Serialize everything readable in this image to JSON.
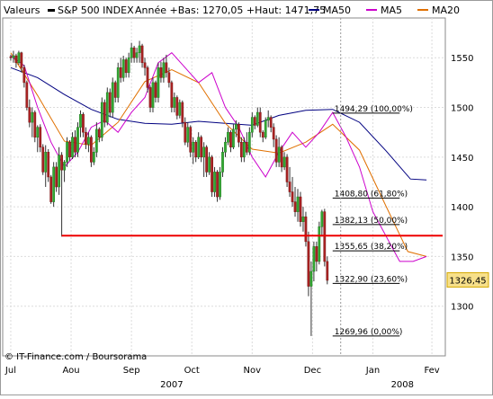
{
  "chart_data": {
    "type": "candlestick",
    "header": {
      "left_label": "Valeurs",
      "symbol": "S&P 500 INDEX",
      "range_text": "Année +Bas: 1270,05 +Haut: 1471,75"
    },
    "legend": [
      {
        "name": "MA50",
        "color": "#000080"
      },
      {
        "name": "MA5",
        "color": "#cc00cc"
      },
      {
        "name": "MA20",
        "color": "#e07000"
      }
    ],
    "y_ticks": [
      1300,
      1350,
      1400,
      1450,
      1500,
      1550
    ],
    "ylim": [
      1250,
      1590
    ],
    "x_month_labels": [
      {
        "label": "Jul",
        "x": 0
      },
      {
        "label": "Aou",
        "x": 22.5
      },
      {
        "label": "Sep",
        "x": 45
      },
      {
        "label": "Oct",
        "x": 67.5
      },
      {
        "label": "Nov",
        "x": 90
      },
      {
        "label": "Dec",
        "x": 112.5
      },
      {
        "label": "Jan",
        "x": 135
      },
      {
        "label": "Fev",
        "x": 157
      }
    ],
    "year_labels": [
      {
        "label": "2007",
        "x": 60
      },
      {
        "label": "2008",
        "x": 146
      }
    ],
    "x_range": [
      -3,
      162
    ],
    "last_price_label": "1326,45",
    "last_price_value": 1326.45,
    "support_line": 1371,
    "vertical_marker_x": 123,
    "fib_levels": [
      {
        "value": 1494.29,
        "label": "1494,29 (100,00%)"
      },
      {
        "value": 1408.8,
        "label": "1408,80 (61,80%)"
      },
      {
        "value": 1382.13,
        "label": "1382,13 (50,00%)"
      },
      {
        "value": 1355.65,
        "label": "1355,65 (38,20%)"
      },
      {
        "value": 1322.9,
        "label": "1322,90 (23,60%)"
      },
      {
        "value": 1269.96,
        "label": "1269,96 (0,00%)"
      }
    ],
    "fib_x_range": [
      120,
      145
    ],
    "footer": "© IT-Finance.com / Boursorama",
    "ma50": [
      [
        0,
        1540
      ],
      [
        10,
        1530
      ],
      [
        20,
        1513
      ],
      [
        30,
        1498
      ],
      [
        40,
        1488
      ],
      [
        50,
        1484
      ],
      [
        60,
        1483
      ],
      [
        70,
        1486
      ],
      [
        80,
        1484
      ],
      [
        90,
        1482
      ],
      [
        100,
        1492
      ],
      [
        110,
        1497
      ],
      [
        120,
        1498
      ],
      [
        130,
        1485
      ],
      [
        140,
        1456
      ],
      [
        149,
        1428
      ],
      [
        155,
        1427
      ]
    ],
    "ma20": [
      [
        0,
        1555
      ],
      [
        10,
        1512
      ],
      [
        20,
        1466
      ],
      [
        30,
        1462
      ],
      [
        40,
        1485
      ],
      [
        50,
        1526
      ],
      [
        60,
        1538
      ],
      [
        70,
        1525
      ],
      [
        80,
        1484
      ],
      [
        90,
        1458
      ],
      [
        100,
        1454
      ],
      [
        110,
        1465
      ],
      [
        120,
        1483
      ],
      [
        130,
        1457
      ],
      [
        140,
        1400
      ],
      [
        148,
        1355
      ],
      [
        155,
        1350
      ]
    ],
    "ma5": [
      [
        0,
        1552
      ],
      [
        5,
        1542
      ],
      [
        10,
        1500
      ],
      [
        15,
        1465
      ],
      [
        20,
        1440
      ],
      [
        25,
        1455
      ],
      [
        30,
        1480
      ],
      [
        35,
        1487
      ],
      [
        40,
        1475
      ],
      [
        45,
        1495
      ],
      [
        50,
        1510
      ],
      [
        55,
        1545
      ],
      [
        60,
        1555
      ],
      [
        65,
        1540
      ],
      [
        70,
        1525
      ],
      [
        75,
        1535
      ],
      [
        80,
        1500
      ],
      [
        85,
        1480
      ],
      [
        90,
        1450
      ],
      [
        95,
        1430
      ],
      [
        100,
        1455
      ],
      [
        105,
        1475
      ],
      [
        110,
        1460
      ],
      [
        115,
        1475
      ],
      [
        120,
        1495
      ],
      [
        125,
        1470
      ],
      [
        130,
        1440
      ],
      [
        135,
        1395
      ],
      [
        140,
        1370
      ],
      [
        145,
        1345
      ],
      [
        150,
        1345
      ],
      [
        155,
        1350
      ]
    ],
    "candles": [
      [
        0,
        1551,
        1553,
        1547,
        1550
      ],
      [
        1,
        1550,
        1557,
        1545,
        1552
      ],
      [
        2,
        1552,
        1554,
        1540,
        1545
      ],
      [
        3,
        1545,
        1557,
        1543,
        1555
      ],
      [
        4,
        1555,
        1556,
        1535,
        1540
      ],
      [
        5,
        1540,
        1543,
        1520,
        1525
      ],
      [
        6,
        1525,
        1527,
        1497,
        1500
      ],
      [
        7,
        1500,
        1508,
        1480,
        1485
      ],
      [
        8,
        1485,
        1500,
        1470,
        1495
      ],
      [
        9,
        1495,
        1497,
        1465,
        1470
      ],
      [
        10,
        1470,
        1482,
        1455,
        1480
      ],
      [
        11,
        1480,
        1483,
        1455,
        1460
      ],
      [
        12,
        1460,
        1463,
        1432,
        1435
      ],
      [
        13,
        1435,
        1462,
        1420,
        1455
      ],
      [
        14,
        1455,
        1458,
        1425,
        1430
      ],
      [
        15,
        1430,
        1432,
        1403,
        1405
      ],
      [
        16,
        1405,
        1445,
        1400,
        1440
      ],
      [
        17,
        1440,
        1445,
        1415,
        1420
      ],
      [
        18,
        1420,
        1460,
        1412,
        1452
      ],
      [
        19,
        1452,
        1455,
        1370,
        1437
      ],
      [
        20,
        1437,
        1447,
        1425,
        1445
      ],
      [
        21,
        1445,
        1470,
        1440,
        1465
      ],
      [
        22,
        1465,
        1467,
        1446,
        1450
      ],
      [
        23,
        1450,
        1475,
        1448,
        1470
      ],
      [
        24,
        1470,
        1477,
        1450,
        1455
      ],
      [
        25,
        1455,
        1485,
        1450,
        1480
      ],
      [
        26,
        1480,
        1497,
        1470,
        1493
      ],
      [
        27,
        1493,
        1495,
        1470,
        1475
      ],
      [
        28,
        1475,
        1480,
        1458,
        1463
      ],
      [
        29,
        1463,
        1475,
        1455,
        1470
      ],
      [
        30,
        1470,
        1472,
        1440,
        1445
      ],
      [
        31,
        1445,
        1460,
        1442,
        1455
      ],
      [
        32,
        1455,
        1485,
        1450,
        1478
      ],
      [
        33,
        1478,
        1480,
        1465,
        1470
      ],
      [
        34,
        1470,
        1510,
        1466,
        1505
      ],
      [
        35,
        1505,
        1508,
        1480,
        1485
      ],
      [
        36,
        1485,
        1520,
        1482,
        1515
      ],
      [
        37,
        1515,
        1519,
        1490,
        1495
      ],
      [
        38,
        1495,
        1530,
        1490,
        1525
      ],
      [
        39,
        1525,
        1527,
        1505,
        1510
      ],
      [
        40,
        1510,
        1545,
        1505,
        1540
      ],
      [
        41,
        1540,
        1550,
        1525,
        1530
      ],
      [
        42,
        1530,
        1552,
        1526,
        1548
      ],
      [
        43,
        1548,
        1550,
        1530,
        1535
      ],
      [
        44,
        1535,
        1555,
        1530,
        1550
      ],
      [
        45,
        1550,
        1565,
        1545,
        1560
      ],
      [
        46,
        1560,
        1562,
        1545,
        1550
      ],
      [
        47,
        1550,
        1560,
        1545,
        1555
      ],
      [
        48,
        1555,
        1567,
        1545,
        1562
      ],
      [
        49,
        1562,
        1564,
        1540,
        1545
      ],
      [
        50,
        1545,
        1550,
        1532,
        1540
      ],
      [
        51,
        1540,
        1542,
        1515,
        1520
      ],
      [
        52,
        1520,
        1522,
        1495,
        1500
      ],
      [
        53,
        1500,
        1530,
        1495,
        1525
      ],
      [
        54,
        1525,
        1527,
        1505,
        1510
      ],
      [
        55,
        1510,
        1545,
        1505,
        1540
      ],
      [
        56,
        1540,
        1546,
        1525,
        1530
      ],
      [
        57,
        1530,
        1550,
        1525,
        1545
      ],
      [
        58,
        1545,
        1553,
        1530,
        1535
      ],
      [
        59,
        1535,
        1540,
        1520,
        1525
      ],
      [
        60,
        1525,
        1527,
        1495,
        1500
      ],
      [
        61,
        1500,
        1515,
        1495,
        1510
      ],
      [
        62,
        1510,
        1512,
        1488,
        1492
      ],
      [
        63,
        1492,
        1508,
        1489,
        1505
      ],
      [
        64,
        1505,
        1507,
        1480,
        1485
      ],
      [
        65,
        1485,
        1490,
        1462,
        1465
      ],
      [
        66,
        1465,
        1485,
        1460,
        1480
      ],
      [
        67,
        1480,
        1482,
        1450,
        1455
      ],
      [
        68,
        1455,
        1470,
        1443,
        1465
      ],
      [
        69,
        1465,
        1467,
        1445,
        1450
      ],
      [
        70,
        1450,
        1475,
        1448,
        1470
      ],
      [
        71,
        1470,
        1472,
        1445,
        1450
      ],
      [
        72,
        1450,
        1465,
        1430,
        1460
      ],
      [
        73,
        1460,
        1462,
        1430,
        1435
      ],
      [
        74,
        1435,
        1455,
        1432,
        1450
      ],
      [
        75,
        1450,
        1452,
        1410,
        1415
      ],
      [
        76,
        1415,
        1440,
        1410,
        1435
      ],
      [
        77,
        1435,
        1437,
        1405,
        1410
      ],
      [
        78,
        1410,
        1440,
        1407,
        1435
      ],
      [
        79,
        1435,
        1460,
        1430,
        1455
      ],
      [
        80,
        1455,
        1470,
        1450,
        1465
      ],
      [
        81,
        1465,
        1480,
        1462,
        1475
      ],
      [
        82,
        1475,
        1477,
        1455,
        1460
      ],
      [
        83,
        1460,
        1483,
        1458,
        1478
      ],
      [
        84,
        1478,
        1487,
        1470,
        1483
      ],
      [
        85,
        1483,
        1485,
        1460,
        1465
      ],
      [
        86,
        1465,
        1470,
        1445,
        1450
      ],
      [
        87,
        1450,
        1470,
        1445,
        1465
      ],
      [
        88,
        1465,
        1475,
        1452,
        1455
      ],
      [
        89,
        1455,
        1480,
        1452,
        1475
      ],
      [
        90,
        1475,
        1495,
        1470,
        1490
      ],
      [
        91,
        1490,
        1492,
        1478,
        1482
      ],
      [
        92,
        1482,
        1500,
        1480,
        1495
      ],
      [
        93,
        1495,
        1500,
        1470,
        1475
      ],
      [
        94,
        1475,
        1477,
        1465,
        1470
      ],
      [
        95,
        1470,
        1490,
        1468,
        1487
      ],
      [
        96,
        1487,
        1497,
        1480,
        1490
      ],
      [
        97,
        1490,
        1492,
        1475,
        1480
      ],
      [
        98,
        1480,
        1484,
        1460,
        1468
      ],
      [
        99,
        1468,
        1472,
        1440,
        1445
      ],
      [
        100,
        1445,
        1470,
        1440,
        1460
      ],
      [
        101,
        1460,
        1462,
        1435,
        1440
      ],
      [
        102,
        1440,
        1455,
        1437,
        1450
      ],
      [
        103,
        1450,
        1453,
        1420,
        1425
      ],
      [
        104,
        1425,
        1440,
        1410,
        1415
      ],
      [
        105,
        1415,
        1430,
        1400,
        1405
      ],
      [
        106,
        1405,
        1420,
        1390,
        1395
      ],
      [
        107,
        1395,
        1418,
        1385,
        1410
      ],
      [
        108,
        1410,
        1415,
        1380,
        1385
      ],
      [
        109,
        1385,
        1400,
        1375,
        1390
      ],
      [
        110,
        1390,
        1395,
        1360,
        1365
      ],
      [
        111,
        1365,
        1375,
        1310,
        1320
      ],
      [
        112,
        1320,
        1345,
        1270,
        1335
      ],
      [
        113,
        1335,
        1365,
        1325,
        1360
      ],
      [
        114,
        1360,
        1365,
        1335,
        1345
      ],
      [
        115,
        1345,
        1385,
        1342,
        1380
      ],
      [
        116,
        1380,
        1397,
        1370,
        1395
      ],
      [
        117,
        1395,
        1398,
        1340,
        1345
      ],
      [
        118,
        1345,
        1350,
        1322,
        1326
      ]
    ]
  }
}
